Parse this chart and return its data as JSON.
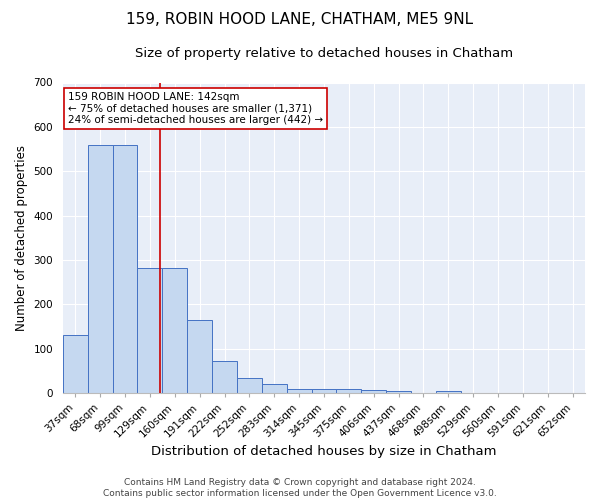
{
  "title1": "159, ROBIN HOOD LANE, CHATHAM, ME5 9NL",
  "title2": "Size of property relative to detached houses in Chatham",
  "xlabel": "Distribution of detached houses by size in Chatham",
  "ylabel": "Number of detached properties",
  "categories": [
    "37sqm",
    "68sqm",
    "99sqm",
    "129sqm",
    "160sqm",
    "191sqm",
    "222sqm",
    "252sqm",
    "283sqm",
    "314sqm",
    "345sqm",
    "375sqm",
    "406sqm",
    "437sqm",
    "468sqm",
    "498sqm",
    "529sqm",
    "560sqm",
    "591sqm",
    "621sqm",
    "652sqm"
  ],
  "values": [
    130,
    558,
    558,
    283,
    283,
    165,
    72,
    34,
    20,
    10,
    10,
    10,
    8,
    5,
    0,
    5,
    0,
    0,
    0,
    0,
    0
  ],
  "bar_color": "#c5d8f0",
  "bar_edge_color": "#4472c4",
  "vline_color": "#cc0000",
  "annotation_text": "159 ROBIN HOOD LANE: 142sqm\n← 75% of detached houses are smaller (1,371)\n24% of semi-detached houses are larger (442) →",
  "annotation_box_color": "white",
  "annotation_box_edge": "#cc0000",
  "ylim": [
    0,
    700
  ],
  "yticks": [
    0,
    100,
    200,
    300,
    400,
    500,
    600,
    700
  ],
  "background_color": "#e8eef8",
  "grid_color": "white",
  "footer": "Contains HM Land Registry data © Crown copyright and database right 2024.\nContains public sector information licensed under the Open Government Licence v3.0.",
  "title1_fontsize": 11,
  "title2_fontsize": 9.5,
  "xlabel_fontsize": 9.5,
  "ylabel_fontsize": 8.5,
  "tick_fontsize": 7.5,
  "footer_fontsize": 6.5,
  "annot_fontsize": 7.5,
  "vline_pos": 3.42
}
